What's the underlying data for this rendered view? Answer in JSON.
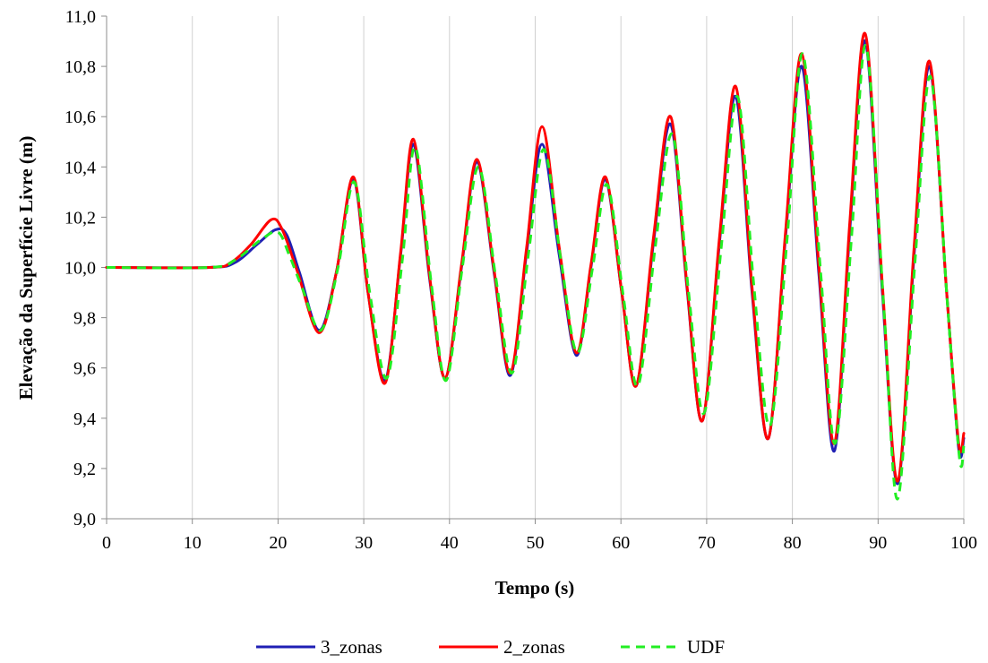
{
  "chart_data": {
    "type": "line",
    "title": "",
    "xlabel": "Tempo (s)",
    "ylabel": "Elevação da Superfície Livre (m)",
    "xlim": [
      0,
      100
    ],
    "ylim": [
      9.0,
      11.0
    ],
    "x_ticks": [
      0,
      10,
      20,
      30,
      40,
      50,
      60,
      70,
      80,
      90,
      100
    ],
    "x_tick_labels": [
      "0",
      "10",
      "20",
      "30",
      "40",
      "50",
      "60",
      "70",
      "80",
      "90",
      "100"
    ],
    "y_ticks": [
      9.0,
      9.2,
      9.4,
      9.6,
      9.8,
      10.0,
      10.2,
      10.4,
      10.6,
      10.8,
      11.0
    ],
    "y_tick_labels": [
      "9,0",
      "9,2",
      "9,4",
      "9,6",
      "9,8",
      "10,0",
      "10,2",
      "10,4",
      "10,6",
      "10,8",
      "11,0"
    ],
    "grid": "vertical",
    "legend_position": "bottom",
    "series": [
      {
        "name": "3_zonas",
        "color": "#1f1fb4",
        "style": "solid",
        "points": [
          [
            0,
            10.0
          ],
          [
            12,
            10.0
          ],
          [
            15,
            10.02
          ],
          [
            17.5,
            10.09
          ],
          [
            19.7,
            10.15
          ],
          [
            21,
            10.13
          ],
          [
            22.5,
            9.98
          ],
          [
            24.8,
            9.75
          ],
          [
            26.8,
            9.98
          ],
          [
            28.8,
            10.35
          ],
          [
            30.5,
            9.9
          ],
          [
            32.5,
            9.55
          ],
          [
            34.3,
            10.05
          ],
          [
            35.8,
            10.49
          ],
          [
            37.7,
            9.95
          ],
          [
            39.5,
            9.56
          ],
          [
            41.4,
            10.0
          ],
          [
            43.2,
            10.42
          ],
          [
            45.2,
            9.98
          ],
          [
            47.1,
            9.57
          ],
          [
            49,
            10.06
          ],
          [
            50.8,
            10.49
          ],
          [
            52.8,
            10.05
          ],
          [
            54.8,
            9.65
          ],
          [
            56.5,
            10.0
          ],
          [
            58.2,
            10.35
          ],
          [
            60.1,
            9.9
          ],
          [
            61.8,
            9.53
          ],
          [
            63.8,
            10.1
          ],
          [
            65.8,
            10.57
          ],
          [
            67.7,
            9.92
          ],
          [
            69.5,
            9.39
          ],
          [
            71.5,
            10.1
          ],
          [
            73.4,
            10.68
          ],
          [
            75.3,
            9.9
          ],
          [
            77.2,
            9.32
          ],
          [
            79.2,
            10.12
          ],
          [
            81.1,
            10.8
          ],
          [
            83.1,
            9.97
          ],
          [
            84.9,
            9.27
          ],
          [
            86.7,
            10.15
          ],
          [
            88.5,
            10.9
          ],
          [
            90.5,
            9.9
          ],
          [
            92.3,
            9.14
          ],
          [
            94.2,
            10.05
          ],
          [
            96,
            10.8
          ],
          [
            98,
            9.9
          ],
          [
            99.4,
            9.28
          ],
          [
            100,
            9.32
          ]
        ]
      },
      {
        "name": "2_zonas",
        "color": "#ff0000",
        "style": "solid",
        "points": [
          [
            0,
            10.0
          ],
          [
            12,
            10.0
          ],
          [
            14.5,
            10.02
          ],
          [
            16.8,
            10.09
          ],
          [
            19.2,
            10.19
          ],
          [
            20.5,
            10.15
          ],
          [
            22.3,
            9.98
          ],
          [
            24.8,
            9.74
          ],
          [
            26.8,
            9.98
          ],
          [
            28.8,
            10.36
          ],
          [
            30.5,
            9.9
          ],
          [
            32.5,
            9.54
          ],
          [
            34.3,
            10.06
          ],
          [
            35.8,
            10.51
          ],
          [
            37.7,
            9.96
          ],
          [
            39.5,
            9.56
          ],
          [
            41.4,
            10.01
          ],
          [
            43.2,
            10.43
          ],
          [
            45.2,
            9.99
          ],
          [
            47.1,
            9.58
          ],
          [
            49,
            10.08
          ],
          [
            50.8,
            10.56
          ],
          [
            52.8,
            10.08
          ],
          [
            54.8,
            9.66
          ],
          [
            56.5,
            10.01
          ],
          [
            58.2,
            10.36
          ],
          [
            60.1,
            9.9
          ],
          [
            61.8,
            9.53
          ],
          [
            63.8,
            10.12
          ],
          [
            65.8,
            10.6
          ],
          [
            67.7,
            9.93
          ],
          [
            69.5,
            9.39
          ],
          [
            71.5,
            10.12
          ],
          [
            73.4,
            10.72
          ],
          [
            75.3,
            9.92
          ],
          [
            77.2,
            9.32
          ],
          [
            79.2,
            10.14
          ],
          [
            81.1,
            10.85
          ],
          [
            83.1,
            10.0
          ],
          [
            84.9,
            9.3
          ],
          [
            86.7,
            10.18
          ],
          [
            88.5,
            10.93
          ],
          [
            90.5,
            9.93
          ],
          [
            92.3,
            9.15
          ],
          [
            94.2,
            10.08
          ],
          [
            96,
            10.82
          ],
          [
            98,
            9.9
          ],
          [
            99.4,
            9.3
          ],
          [
            100,
            9.34
          ]
        ]
      },
      {
        "name": "UDF",
        "color": "#22ee22",
        "style": "dashed",
        "points": [
          [
            0,
            10.0
          ],
          [
            12,
            10.0
          ],
          [
            15,
            10.03
          ],
          [
            18,
            10.11
          ],
          [
            20,
            10.14
          ],
          [
            21.3,
            10.05
          ],
          [
            22.8,
            9.92
          ],
          [
            25,
            9.75
          ],
          [
            27,
            10.0
          ],
          [
            28.9,
            10.34
          ],
          [
            30.7,
            9.9
          ],
          [
            32.7,
            9.56
          ],
          [
            34.5,
            10.03
          ],
          [
            36,
            10.48
          ],
          [
            37.9,
            9.93
          ],
          [
            39.6,
            9.55
          ],
          [
            41.5,
            10.0
          ],
          [
            43.4,
            10.4
          ],
          [
            45.4,
            9.96
          ],
          [
            47.3,
            9.58
          ],
          [
            49.2,
            10.05
          ],
          [
            51,
            10.47
          ],
          [
            53,
            10.03
          ],
          [
            54.9,
            9.66
          ],
          [
            56.7,
            10.0
          ],
          [
            58.4,
            10.33
          ],
          [
            60.3,
            9.88
          ],
          [
            62,
            9.53
          ],
          [
            64,
            10.08
          ],
          [
            66,
            10.53
          ],
          [
            67.9,
            9.9
          ],
          [
            69.7,
            9.42
          ],
          [
            71.7,
            10.08
          ],
          [
            73.6,
            10.68
          ],
          [
            75.5,
            9.93
          ],
          [
            77.4,
            9.37
          ],
          [
            79.4,
            10.12
          ],
          [
            81.2,
            10.85
          ],
          [
            83.3,
            9.98
          ],
          [
            85,
            9.3
          ],
          [
            86.9,
            10.12
          ],
          [
            88.6,
            10.88
          ],
          [
            90.7,
            9.82
          ],
          [
            92.3,
            9.08
          ],
          [
            94.3,
            10.02
          ],
          [
            96.1,
            10.76
          ],
          [
            98.1,
            9.85
          ],
          [
            99.5,
            9.24
          ],
          [
            100,
            9.29
          ]
        ]
      }
    ]
  }
}
